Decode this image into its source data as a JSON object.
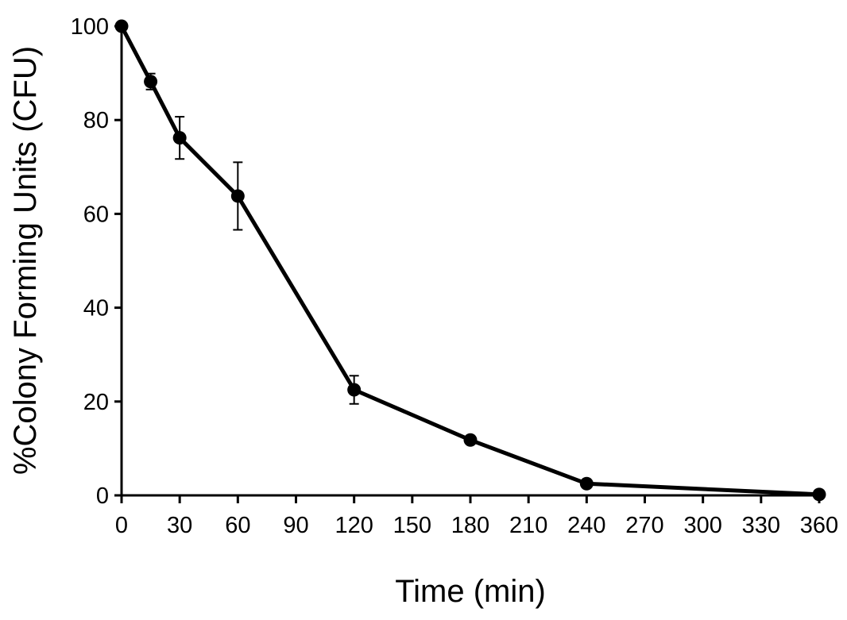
{
  "chart_data": {
    "type": "line",
    "title": "",
    "xlabel": "Time (min)",
    "ylabel": "%Colony Forming Units (CFU)",
    "xlim": [
      0,
      360
    ],
    "ylim": [
      0,
      100
    ],
    "xticks": [
      0,
      30,
      60,
      90,
      120,
      150,
      180,
      210,
      240,
      270,
      300,
      330,
      360
    ],
    "yticks": [
      0,
      20,
      40,
      60,
      80,
      100
    ],
    "grid": false,
    "legend": "none",
    "series": [
      {
        "color": "#000000",
        "marker": "circle",
        "points": [
          {
            "x": 0,
            "y": 100,
            "err": 0
          },
          {
            "x": 15,
            "y": 88.2,
            "err": 1.7
          },
          {
            "x": 30,
            "y": 76.2,
            "err": 4.5
          },
          {
            "x": 60,
            "y": 63.8,
            "err": 7.2
          },
          {
            "x": 120,
            "y": 22.5,
            "err": 3.0
          },
          {
            "x": 180,
            "y": 11.8,
            "err": 0
          },
          {
            "x": 240,
            "y": 2.5,
            "err": 0
          },
          {
            "x": 360,
            "y": 0.2,
            "err": 0
          }
        ]
      }
    ]
  }
}
